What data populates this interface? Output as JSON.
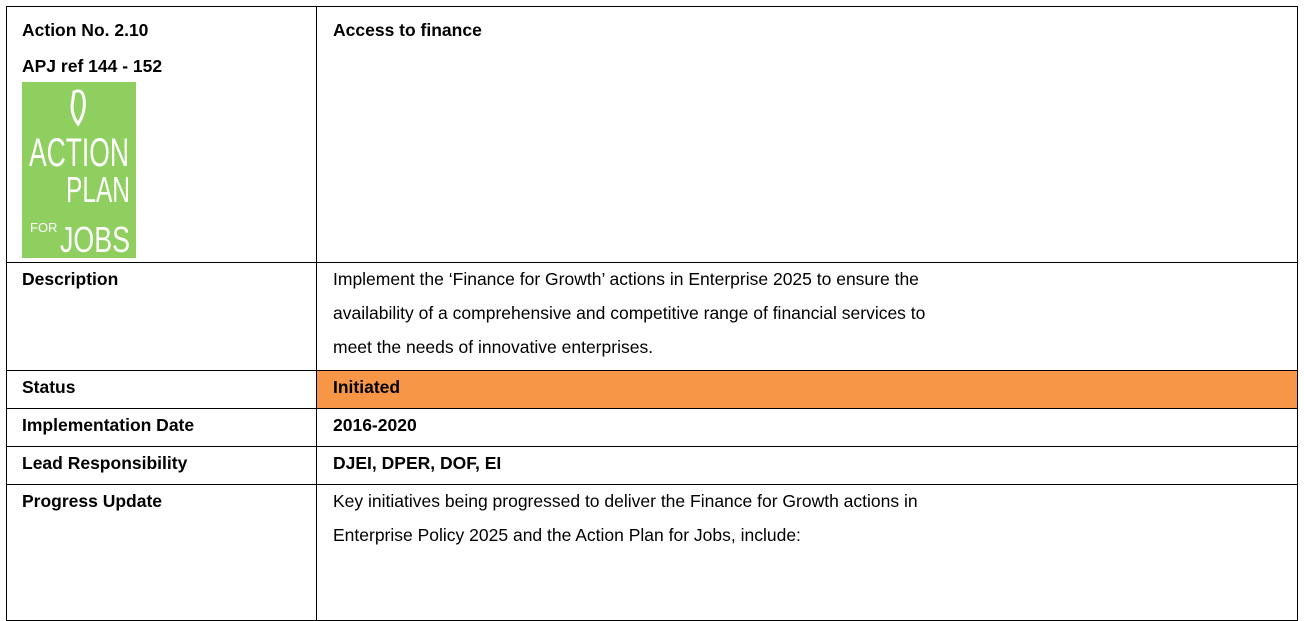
{
  "header": {
    "action_no": "Action No. 2.10",
    "apj_ref": "APJ ref 144 - 152",
    "title": "Access to finance",
    "logo": {
      "lines": [
        "ACTION",
        "PLAN",
        "FOR",
        "JOBS"
      ],
      "color": "#8fcf5f"
    }
  },
  "rows": [
    {
      "label": "Description",
      "lines": [
        "Implement the ‘Finance for Growth’ actions in Enterprise 2025 to ensure the",
        "availability of a comprehensive and competitive range of financial services to",
        "meet the needs of innovative enterprises."
      ]
    },
    {
      "label": "Status",
      "value": "Initiated",
      "color": "#f79646"
    },
    {
      "label": "Implementation Date",
      "value": "2016-2020"
    },
    {
      "label": "Lead Responsibility",
      "value": "DJEI, DPER, DOF, EI"
    },
    {
      "label": "Progress Update",
      "lines": [
        "Key initiatives being progressed to deliver the Finance for Growth actions in",
        "Enterprise Policy 2025 and the Action Plan for Jobs, include:"
      ]
    }
  ]
}
